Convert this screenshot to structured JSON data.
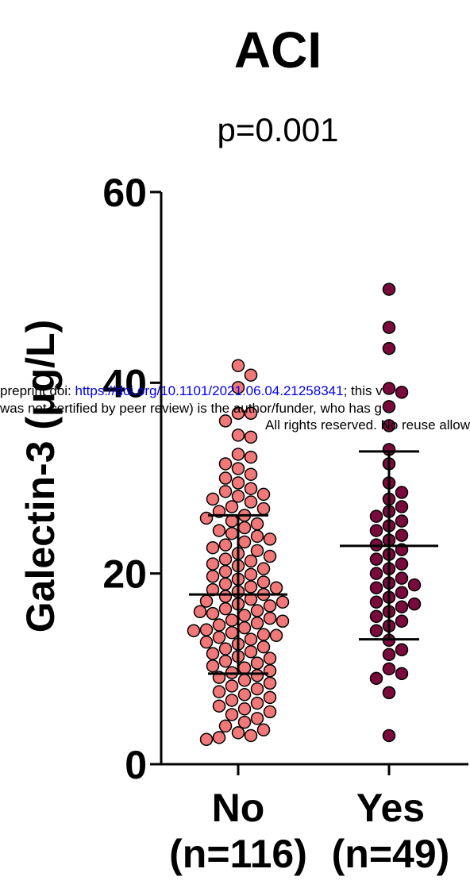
{
  "chart_data": {
    "type": "scatter",
    "title": "ACI",
    "subtitle": "p=0.001",
    "ylabel": "Galectin-3 (μg/L)",
    "xlabel": "",
    "ylim": [
      0,
      60
    ],
    "yticks": [
      0,
      20,
      40,
      60
    ],
    "categories": [
      "No\n(n=116)",
      "Yes\n(n=49)"
    ],
    "category_lines": [
      [
        "No",
        "(n=116)"
      ],
      [
        "Yes",
        "(n=49)"
      ]
    ],
    "series": [
      {
        "color": "#f07878",
        "stroke": "#000000",
        "mean": 17.8,
        "sd_low": 9.5,
        "sd_high": 26.1,
        "values": [
          41.8,
          40.8,
          39.5,
          36.8,
          36.8,
          36.0,
          34.5,
          34.3,
          32.5,
          32.2,
          31.5,
          31.0,
          30.4,
          30.0,
          29.5,
          28.9,
          28.6,
          28.3,
          28.1,
          27.8,
          27.5,
          27.0,
          26.8,
          26.5,
          26.1,
          25.8,
          25.5,
          25.2,
          24.8,
          24.5,
          24.2,
          23.9,
          23.6,
          23.3,
          23.0,
          22.7,
          22.4,
          22.1,
          21.8,
          21.5,
          21.3,
          21.0,
          20.8,
          20.5,
          20.2,
          19.9,
          19.7,
          19.4,
          19.1,
          18.9,
          18.6,
          18.3,
          18.1,
          17.8,
          17.6,
          17.3,
          17.1,
          16.8,
          16.6,
          16.3,
          16.1,
          15.8,
          15.6,
          15.3,
          15.1,
          14.8,
          14.6,
          14.3,
          14.1,
          13.8,
          13.6,
          13.3,
          13.1,
          12.8,
          12.6,
          12.3,
          12.1,
          11.8,
          11.6,
          11.3,
          11.1,
          10.8,
          10.6,
          10.3,
          10.1,
          9.8,
          9.6,
          9.3,
          9.1,
          8.8,
          8.5,
          8.2,
          7.9,
          7.6,
          7.3,
          7.0,
          6.7,
          6.4,
          6.1,
          5.8,
          5.5,
          5.2,
          4.8,
          4.4,
          4.0,
          3.6,
          3.3,
          3.0,
          2.8,
          2.6,
          13.5,
          14.0,
          15.0,
          16.0,
          17.0,
          18.5
        ]
      },
      {
        "color": "#7a0a3c",
        "stroke": "#000000",
        "mean": 22.9,
        "sd_low": 13.1,
        "sd_high": 32.8,
        "values": [
          49.8,
          45.8,
          43.6,
          39.4,
          39.0,
          37.5,
          35.5,
          33.0,
          31.5,
          29.5,
          28.5,
          27.8,
          27.0,
          26.5,
          26.0,
          25.5,
          25.0,
          24.0,
          23.5,
          23.0,
          22.5,
          22.0,
          21.5,
          21.0,
          20.5,
          20.0,
          19.5,
          19.0,
          18.5,
          18.0,
          17.5,
          17.0,
          16.5,
          16.0,
          15.5,
          15.0,
          14.5,
          14.0,
          13.0,
          12.0,
          11.5,
          10.0,
          9.5,
          9.0,
          7.5,
          3.0,
          24.5,
          18.8,
          16.8
        ]
      }
    ],
    "watermark_lines": [
      {
        "prefix": "preprint doi: ",
        "link": "https://doi.org/10.1101/2021.06.04.21258341",
        "suffix": "; this v"
      },
      {
        "prefix": "was not certified by peer review) is the author/funder, who has g",
        "link": "",
        "suffix": ""
      },
      {
        "prefix": "All rights reserved. No reuse allow",
        "link": "",
        "suffix": ""
      }
    ]
  }
}
